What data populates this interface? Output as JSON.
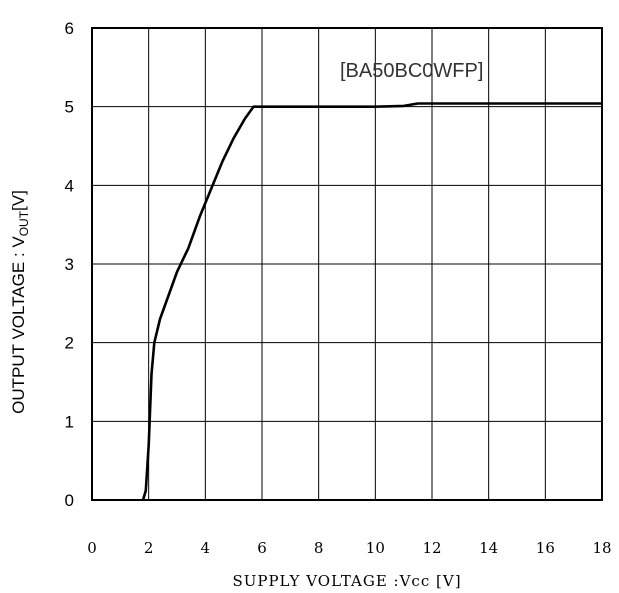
{
  "chart_data": {
    "type": "line",
    "annotation": "[BA50BC0WFP]",
    "xlabel": "SUPPLY VOLTAGE  :Vcc [V]",
    "ylabel": "OUTPUT VOLTAGE : V",
    "ylabel_subscript": "OUT",
    "ylabel_unit": "[V]",
    "xlim": [
      0,
      18
    ],
    "ylim": [
      0,
      6
    ],
    "x_ticks": [
      "0",
      "2",
      "4",
      "6",
      "8",
      "10",
      "12",
      "14",
      "16",
      "18"
    ],
    "y_ticks": [
      "0",
      "1",
      "2",
      "3",
      "4",
      "5",
      "6"
    ],
    "grid": true,
    "series": [
      {
        "color": "#000000",
        "x": [
          1.8,
          1.9,
          2.0,
          2.05,
          2.1,
          2.2,
          2.4,
          2.7,
          3.0,
          3.4,
          3.8,
          4.2,
          4.6,
          5.0,
          5.4,
          5.7,
          6.0,
          8.0,
          10.0,
          11.0,
          11.5,
          14.0,
          18.0
        ],
        "y": [
          0.0,
          0.12,
          0.7,
          1.15,
          1.6,
          2.0,
          2.3,
          2.6,
          2.9,
          3.2,
          3.6,
          3.95,
          4.3,
          4.6,
          4.85,
          5.0,
          5.0,
          5.0,
          5.0,
          5.01,
          5.04,
          5.04,
          5.04
        ]
      }
    ]
  }
}
